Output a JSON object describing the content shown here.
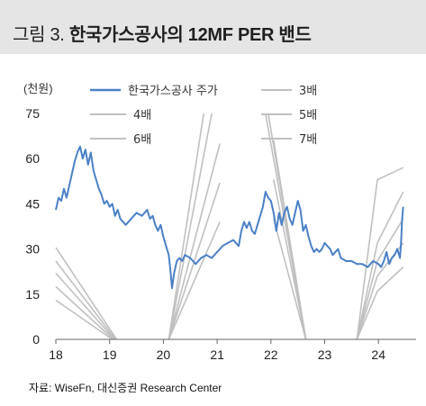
{
  "header": {
    "title_prefix": "그림 3.",
    "title_text": "한국가스공사의 12MF PER 밴드"
  },
  "unit_label": "(천원)",
  "source": "자료: WiseFn, 대신증권 Research Center",
  "colors": {
    "price": "#4a80c6",
    "band": "#c0c0c0",
    "axis": "#666666",
    "header_bg": "#e5e5e5"
  },
  "chart_data": {
    "type": "line",
    "title": "한국가스공사의 12MF PER 밴드",
    "ylabel": "(천원)",
    "xlim": [
      2018.0,
      2024.7
    ],
    "ylim": [
      0,
      75
    ],
    "yticks": [
      0,
      15,
      30,
      45,
      60,
      75
    ],
    "xticks": [
      {
        "value": 2018,
        "label": "18"
      },
      {
        "value": 2019,
        "label": "19"
      },
      {
        "value": 2020,
        "label": "20"
      },
      {
        "value": 2021,
        "label": "21"
      },
      {
        "value": 2022,
        "label": "22"
      },
      {
        "value": 2023,
        "label": "23"
      },
      {
        "value": 2024,
        "label": "24"
      }
    ],
    "grid": false,
    "legend": [
      {
        "label": "한국가스공사 주가",
        "series": "price"
      },
      {
        "label": "3배",
        "series": "band_3x"
      },
      {
        "label": "4배",
        "series": "band_4x"
      },
      {
        "label": "5배",
        "series": "band_5x"
      },
      {
        "label": "6배",
        "series": "band_6x"
      },
      {
        "label": "7배",
        "series": "band_7x"
      }
    ],
    "price": {
      "name": "한국가스공사 주가",
      "points": [
        [
          2018.0,
          43
        ],
        [
          2018.05,
          47
        ],
        [
          2018.1,
          46
        ],
        [
          2018.15,
          50
        ],
        [
          2018.2,
          47
        ],
        [
          2018.25,
          51
        ],
        [
          2018.3,
          55
        ],
        [
          2018.35,
          59
        ],
        [
          2018.4,
          62
        ],
        [
          2018.45,
          64
        ],
        [
          2018.5,
          60
        ],
        [
          2018.55,
          63
        ],
        [
          2018.6,
          58
        ],
        [
          2018.65,
          62
        ],
        [
          2018.7,
          56
        ],
        [
          2018.75,
          53
        ],
        [
          2018.8,
          50
        ],
        [
          2018.85,
          48
        ],
        [
          2018.9,
          45
        ],
        [
          2018.95,
          46
        ],
        [
          2019.0,
          44
        ],
        [
          2019.05,
          45
        ],
        [
          2019.1,
          41
        ],
        [
          2019.15,
          43
        ],
        [
          2019.2,
          40
        ],
        [
          2019.3,
          38
        ],
        [
          2019.4,
          40
        ],
        [
          2019.5,
          42
        ],
        [
          2019.6,
          41
        ],
        [
          2019.7,
          43
        ],
        [
          2019.75,
          40
        ],
        [
          2019.8,
          41
        ],
        [
          2019.85,
          38
        ],
        [
          2019.9,
          36
        ],
        [
          2019.95,
          38
        ],
        [
          2020.0,
          34
        ],
        [
          2020.05,
          31
        ],
        [
          2020.1,
          28
        ],
        [
          2020.13,
          23
        ],
        [
          2020.16,
          17
        ],
        [
          2020.2,
          22
        ],
        [
          2020.25,
          26
        ],
        [
          2020.3,
          27
        ],
        [
          2020.35,
          26
        ],
        [
          2020.4,
          28
        ],
        [
          2020.5,
          27
        ],
        [
          2020.6,
          25
        ],
        [
          2020.7,
          27
        ],
        [
          2020.8,
          28
        ],
        [
          2020.9,
          27
        ],
        [
          2021.0,
          29
        ],
        [
          2021.1,
          31
        ],
        [
          2021.2,
          32
        ],
        [
          2021.3,
          33
        ],
        [
          2021.4,
          31
        ],
        [
          2021.45,
          36
        ],
        [
          2021.5,
          39
        ],
        [
          2021.55,
          37
        ],
        [
          2021.6,
          39
        ],
        [
          2021.65,
          36
        ],
        [
          2021.7,
          35
        ],
        [
          2021.75,
          38
        ],
        [
          2021.8,
          41
        ],
        [
          2021.85,
          44
        ],
        [
          2021.9,
          49
        ],
        [
          2021.95,
          47
        ],
        [
          2022.0,
          46
        ],
        [
          2022.05,
          42
        ],
        [
          2022.1,
          36
        ],
        [
          2022.15,
          42
        ],
        [
          2022.2,
          38
        ],
        [
          2022.25,
          42
        ],
        [
          2022.3,
          44
        ],
        [
          2022.35,
          40
        ],
        [
          2022.4,
          38
        ],
        [
          2022.45,
          42
        ],
        [
          2022.5,
          46
        ],
        [
          2022.55,
          43
        ],
        [
          2022.6,
          36
        ],
        [
          2022.65,
          38
        ],
        [
          2022.7,
          34
        ],
        [
          2022.75,
          31
        ],
        [
          2022.8,
          29
        ],
        [
          2022.85,
          30
        ],
        [
          2022.9,
          29
        ],
        [
          2022.95,
          30
        ],
        [
          2023.0,
          32
        ],
        [
          2023.05,
          31
        ],
        [
          2023.1,
          30
        ],
        [
          2023.15,
          28
        ],
        [
          2023.2,
          29
        ],
        [
          2023.25,
          30
        ],
        [
          2023.3,
          27
        ],
        [
          2023.4,
          26
        ],
        [
          2023.5,
          26
        ],
        [
          2023.6,
          25
        ],
        [
          2023.7,
          25
        ],
        [
          2023.8,
          24
        ],
        [
          2023.9,
          26
        ],
        [
          2024.0,
          25
        ],
        [
          2024.05,
          24
        ],
        [
          2024.1,
          26
        ],
        [
          2024.15,
          29
        ],
        [
          2024.2,
          25
        ],
        [
          2024.25,
          27
        ],
        [
          2024.3,
          28
        ],
        [
          2024.35,
          30
        ],
        [
          2024.4,
          27
        ],
        [
          2024.42,
          32
        ],
        [
          2024.44,
          40
        ],
        [
          2024.46,
          44
        ]
      ]
    },
    "bands": [
      {
        "name": "3배",
        "segments": [
          [
            [
              2018.0,
              13
            ],
            [
              2019.05,
              0
            ]
          ],
          [
            [
              2020.1,
              0
            ],
            [
              2021.05,
              39
            ]
          ],
          [
            [
              2022.05,
              40
            ],
            [
              2022.65,
              0
            ]
          ],
          [
            [
              2023.6,
              0
            ],
            [
              2023.98,
              16
            ],
            [
              2024.46,
              24
            ]
          ]
        ]
      },
      {
        "name": "4배",
        "segments": [
          [
            [
              2018.0,
              17.5
            ],
            [
              2019.07,
              0
            ]
          ],
          [
            [
              2020.1,
              0
            ],
            [
              2021.05,
              52
            ]
          ],
          [
            [
              2022.05,
              53
            ],
            [
              2022.65,
              0
            ]
          ],
          [
            [
              2023.6,
              0
            ],
            [
              2023.98,
              21
            ],
            [
              2024.46,
              32
            ]
          ]
        ]
      },
      {
        "name": "5배",
        "segments": [
          [
            [
              2018.0,
              22
            ],
            [
              2019.09,
              0
            ]
          ],
          [
            [
              2020.1,
              0
            ],
            [
              2021.05,
              65
            ]
          ],
          [
            [
              2022.05,
              66
            ],
            [
              2022.65,
              0
            ]
          ],
          [
            [
              2023.6,
              0
            ],
            [
              2023.98,
              26
            ],
            [
              2024.46,
              40
            ]
          ]
        ]
      },
      {
        "name": "6배",
        "segments": [
          [
            [
              2018.0,
              26
            ],
            [
              2019.11,
              0
            ]
          ],
          [
            [
              2020.1,
              0
            ],
            [
              2020.9,
              75
            ]
          ],
          [
            [
              2021.95,
              75
            ],
            [
              2022.65,
              0
            ]
          ],
          [
            [
              2023.6,
              0
            ],
            [
              2023.98,
              32
            ],
            [
              2024.46,
              49
            ]
          ]
        ]
      },
      {
        "name": "7배",
        "segments": [
          [
            [
              2018.0,
              30.5
            ],
            [
              2019.13,
              0
            ]
          ],
          [
            [
              2020.1,
              0
            ],
            [
              2020.75,
              75
            ]
          ],
          [
            [
              2021.9,
              75
            ],
            [
              2022.65,
              0
            ]
          ],
          [
            [
              2023.6,
              0
            ],
            [
              2023.98,
              53
            ],
            [
              2024.46,
              57
            ]
          ]
        ]
      }
    ]
  }
}
